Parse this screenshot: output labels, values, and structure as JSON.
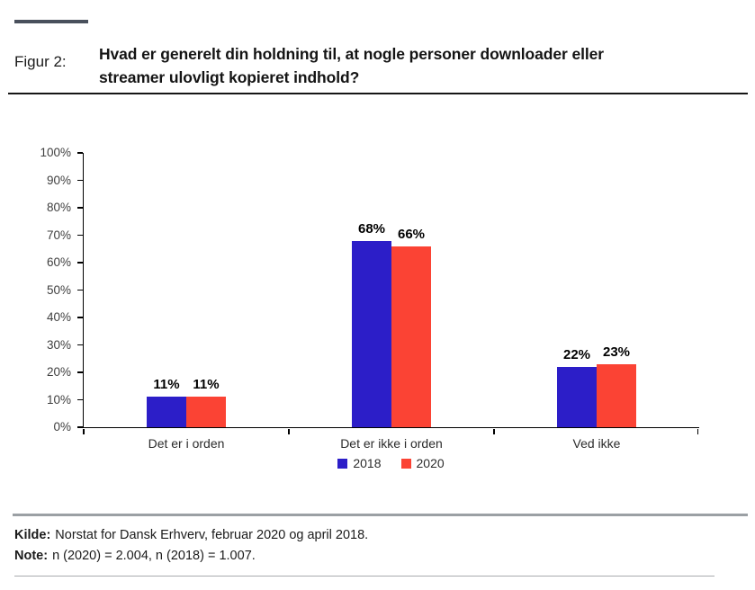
{
  "page": {
    "background": "#ffffff"
  },
  "header": {
    "figure_label": "Figur 2:",
    "title": "Hvad er generelt din holdning til, at nogle personer downloader eller\nstreamer ulovligt kopieret indhold?",
    "accent_color": "#49505c"
  },
  "chart_data": {
    "type": "bar",
    "title": "",
    "categories": [
      "Det er i orden",
      "Det er ikke i orden",
      "Ved ikke"
    ],
    "series": [
      {
        "name": "2018",
        "color": "#2c1ec8",
        "values": [
          11,
          68,
          22
        ]
      },
      {
        "name": "2020",
        "color": "#fb4334",
        "values": [
          11,
          66,
          23
        ]
      }
    ],
    "value_suffix": "%",
    "xlabel": "",
    "ylabel": "",
    "ylim": [
      0,
      100
    ],
    "ytick_step": 10,
    "ytick_labels": [
      "0%",
      "10%",
      "20%",
      "30%",
      "40%",
      "50%",
      "60%",
      "70%",
      "80%",
      "90%",
      "100%"
    ],
    "grid": false,
    "data_labels": true,
    "legend_position": "bottom-center",
    "axis_color": "#000000",
    "tick_label_color": "#3f3f3f"
  },
  "footer": {
    "kilde_label": "Kilde:",
    "kilde_text": "Norstat for Dansk Erhverv, februar 2020 og april 2018.",
    "note_label": "Note:",
    "note_text": "n (2020) = 2.004, n (2018) = 1.007."
  }
}
